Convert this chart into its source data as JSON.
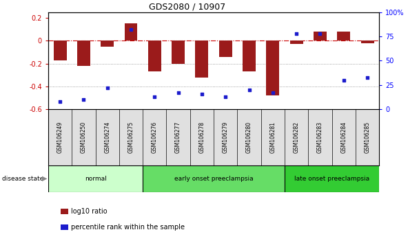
{
  "title": "GDS2080 / 10907",
  "samples": [
    "GSM106249",
    "GSM106250",
    "GSM106274",
    "GSM106275",
    "GSM106276",
    "GSM106277",
    "GSM106278",
    "GSM106279",
    "GSM106280",
    "GSM106281",
    "GSM106282",
    "GSM106283",
    "GSM106284",
    "GSM106285"
  ],
  "log10_ratio": [
    -0.17,
    -0.22,
    -0.05,
    0.15,
    -0.27,
    -0.2,
    -0.32,
    -0.14,
    -0.27,
    -0.48,
    -0.03,
    0.08,
    0.08,
    -0.02
  ],
  "percentile_rank": [
    8,
    10,
    22,
    82,
    13,
    17,
    16,
    13,
    20,
    17,
    78,
    78,
    30,
    33
  ],
  "bar_color": "#9B1B1B",
  "dot_color": "#1C1CCC",
  "hline_color": "#CC0000",
  "dotted_line_color": "#888888",
  "bg_color": "#FFFFFF",
  "ylim_left": [
    -0.6,
    0.25
  ],
  "ylim_right": [
    0,
    100
  ],
  "yticks_left": [
    -0.6,
    -0.4,
    -0.2,
    0.0,
    0.2
  ],
  "ytick_labels_left": [
    "-0.6",
    "-0.4",
    "-0.2",
    "0",
    "0.2"
  ],
  "yticks_right": [
    0,
    25,
    50,
    75,
    100
  ],
  "ytick_labels_right": [
    "0",
    "25",
    "50",
    "75",
    "100%"
  ],
  "groups": [
    {
      "label": "normal",
      "start": 0,
      "end": 3,
      "color": "#CCFFCC"
    },
    {
      "label": "early onset preeclampsia",
      "start": 4,
      "end": 9,
      "color": "#66DD66"
    },
    {
      "label": "late onset preeclampsia",
      "start": 10,
      "end": 13,
      "color": "#33CC33"
    }
  ],
  "legend_items": [
    {
      "label": "log10 ratio",
      "color": "#9B1B1B"
    },
    {
      "label": "percentile rank within the sample",
      "color": "#1C1CCC"
    }
  ],
  "disease_state_label": "disease state",
  "bar_width": 0.55
}
